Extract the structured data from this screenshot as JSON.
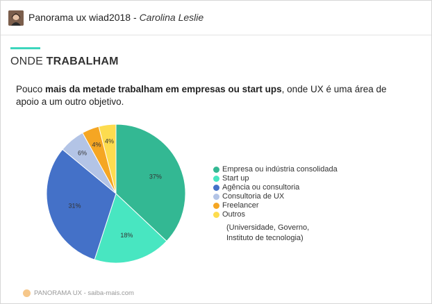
{
  "header": {
    "deck_title": "Panorama ux wiad2018",
    "separator": " - ",
    "author": "Carolina Leslie"
  },
  "slide": {
    "heading_light": "ONDE ",
    "heading_bold": "TRABALHAM",
    "subtitle_pre": "Pouco ",
    "subtitle_bold": "mais da metade trabalham em empresas ou start ups",
    "subtitle_post": ", onde UX é uma área de apoio a um outro objetivo.",
    "note_line1": "(Universidade, Governo,",
    "note_line2": "Instituto de tecnologia)",
    "footer": "PANORAMA UX - saiba-mais.com"
  },
  "colors": {
    "accent": "#3dd6bd"
  },
  "chart_data": {
    "type": "pie",
    "start_angle_deg": 0,
    "direction": "clockwise",
    "legend_position": "right",
    "slices": [
      {
        "label": "Empresa ou indústria consolidada",
        "value": 37,
        "display": "37%",
        "color": "#33b893"
      },
      {
        "label": "Start up",
        "value": 18,
        "display": "18%",
        "color": "#48e6c1"
      },
      {
        "label": "Agência ou consultoria",
        "value": 31,
        "display": "31%",
        "color": "#4471c8"
      },
      {
        "label": "Consultoria de UX",
        "value": 6,
        "display": "6%",
        "color": "#b3c4e6"
      },
      {
        "label": "Freelancer",
        "value": 4,
        "display": "4%",
        "color": "#f5a623"
      },
      {
        "label": "Outros",
        "value": 4,
        "display": "4%",
        "color": "#fddc4f"
      }
    ]
  }
}
